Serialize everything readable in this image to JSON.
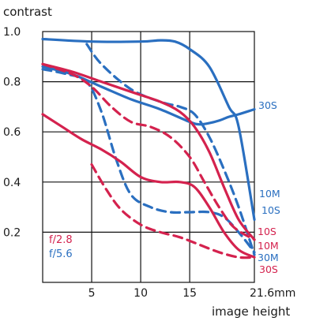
{
  "chart_data": {
    "type": "line",
    "ylabel": "contrast",
    "xlabel": "image height",
    "x_ticks": [
      {
        "value": 5,
        "label": "5"
      },
      {
        "value": 10,
        "label": "10"
      },
      {
        "value": 15,
        "label": "15"
      },
      {
        "value": 21.6,
        "label": "21.6mm"
      }
    ],
    "y_ticks": [
      {
        "value": 0.2,
        "label": "0.2"
      },
      {
        "value": 0.4,
        "label": "0.4"
      },
      {
        "value": 0.6,
        "label": "0.6"
      },
      {
        "value": 0.8,
        "label": "0.8"
      },
      {
        "value": 1.0,
        "label": "1.0"
      }
    ],
    "xlim": [
      0,
      21.6
    ],
    "ylim": [
      0,
      1.0
    ],
    "grid": true,
    "colors": {
      "f2.8": "#d4224e",
      "f5.6": "#2a6fc0"
    },
    "legend": [
      {
        "label": "f/2.8",
        "color": "#d4224e"
      },
      {
        "label": "f/5.6",
        "color": "#2a6fc0"
      }
    ],
    "series": [
      {
        "aperture": "f/5.6",
        "label": "30S",
        "color": "#2a6fc0",
        "style": "solid",
        "x": [
          0,
          5,
          10,
          12,
          13.5,
          15,
          17,
          19,
          20,
          21.6
        ],
        "y": [
          0.97,
          0.96,
          0.96,
          0.965,
          0.96,
          0.93,
          0.86,
          0.7,
          0.62,
          0.25
        ]
      },
      {
        "aperture": "f/5.6",
        "label": "30M",
        "color": "#2a6fc0",
        "style": "dashed",
        "x": [
          4.5,
          6,
          9,
          12,
          14,
          15.5,
          17,
          18.5,
          20,
          21.6
        ],
        "y": [
          0.95,
          0.87,
          0.77,
          0.72,
          0.7,
          0.67,
          0.58,
          0.45,
          0.3,
          0.11
        ]
      },
      {
        "aperture": "f/5.6",
        "label": "10S",
        "color": "#2a6fc0",
        "style": "solid",
        "x": [
          0,
          3,
          6,
          9,
          12,
          15,
          16,
          17,
          18,
          19,
          20,
          21.6
        ],
        "y": [
          0.86,
          0.83,
          0.78,
          0.73,
          0.69,
          0.64,
          0.63,
          0.635,
          0.645,
          0.66,
          0.67,
          0.69
        ]
      },
      {
        "aperture": "f/5.6",
        "label": "10M",
        "color": "#2a6fc0",
        "style": "dashed",
        "x": [
          0,
          2.5,
          4.5,
          6,
          7.5,
          9,
          11,
          13,
          15,
          17,
          18.5,
          20,
          21.6
        ],
        "y": [
          0.85,
          0.83,
          0.8,
          0.68,
          0.49,
          0.35,
          0.3,
          0.28,
          0.28,
          0.28,
          0.26,
          0.2,
          0.12
        ]
      },
      {
        "aperture": "f/2.8",
        "label": "10S",
        "color": "#d4224e",
        "style": "solid",
        "x": [
          0,
          3,
          6,
          9,
          12,
          14,
          15.5,
          17,
          18.5,
          20,
          21.6
        ],
        "y": [
          0.87,
          0.84,
          0.8,
          0.76,
          0.72,
          0.68,
          0.62,
          0.52,
          0.38,
          0.25,
          0.17
        ]
      },
      {
        "aperture": "f/2.8",
        "label": "10M",
        "color": "#d4224e",
        "style": "dashed",
        "x": [
          0,
          3,
          5,
          7,
          9,
          11,
          13,
          15,
          16.5,
          18,
          19.5,
          21.6
        ],
        "y": [
          0.87,
          0.83,
          0.78,
          0.7,
          0.64,
          0.62,
          0.58,
          0.5,
          0.4,
          0.3,
          0.22,
          0.17
        ]
      },
      {
        "aperture": "f/2.8",
        "label": "30S",
        "color": "#d4224e",
        "style": "solid",
        "x": [
          0,
          2,
          4,
          6,
          8,
          10,
          12,
          14,
          15.5,
          17,
          18.5,
          20,
          21.6
        ],
        "y": [
          0.67,
          0.62,
          0.57,
          0.53,
          0.48,
          0.42,
          0.4,
          0.4,
          0.38,
          0.3,
          0.2,
          0.13,
          0.1
        ]
      },
      {
        "aperture": "f/2.8",
        "label": "30M",
        "color": "#d4224e",
        "style": "dashed",
        "x": [
          5,
          6.5,
          8,
          10,
          12,
          14,
          16,
          18,
          20,
          21.6
        ],
        "y": [
          0.47,
          0.37,
          0.29,
          0.23,
          0.2,
          0.18,
          0.15,
          0.12,
          0.1,
          0.1
        ]
      }
    ],
    "curve_labels": [
      {
        "label": "30S",
        "color": "#2a6fc0"
      },
      {
        "label": "10M",
        "color": "#2a6fc0"
      },
      {
        "label": "10S",
        "color": "#2a6fc0"
      },
      {
        "label": "10S",
        "color": "#d4224e"
      },
      {
        "label": "10M",
        "color": "#d4224e"
      },
      {
        "label": "30M",
        "color": "#2a6fc0"
      },
      {
        "label": "30S",
        "color": "#d4224e"
      }
    ]
  }
}
